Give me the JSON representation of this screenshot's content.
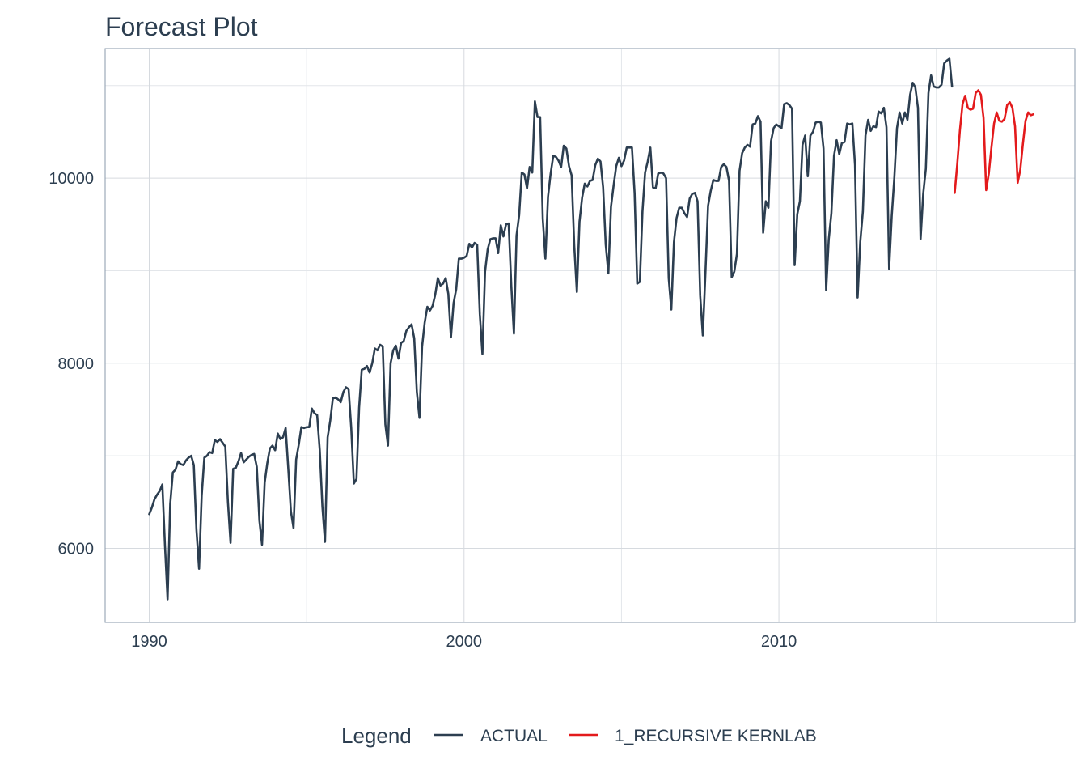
{
  "title": "Forecast Plot",
  "legend": {
    "title": "Legend",
    "position": "bottom",
    "items": [
      {
        "label": "ACTUAL",
        "color": "#2c3e50"
      },
      {
        "label": "1_RECURSIVE KERNLAB",
        "color": "#e31a1c"
      }
    ]
  },
  "chart_data": {
    "type": "line",
    "title": "Forecast Plot",
    "xlabel": "",
    "ylabel": "",
    "xlim": [
      1988.6,
      2019.4
    ],
    "ylim": [
      5200,
      11400
    ],
    "x_ticks": [
      1990,
      2000,
      2010
    ],
    "x_tick_labels": [
      "1990",
      "2000",
      "2010"
    ],
    "y_ticks": [
      6000,
      8000,
      10000
    ],
    "y_tick_labels": [
      "6000",
      "8000",
      "10000"
    ],
    "grid": true,
    "series": [
      {
        "name": "ACTUAL",
        "color": "#2c3e50",
        "x_start": 1990.0,
        "x_step": 0.083333,
        "values": [
          6370,
          6440,
          6530,
          6580,
          6620,
          6690,
          6030,
          5450,
          6480,
          6820,
          6850,
          6940,
          6910,
          6900,
          6950,
          6980,
          7000,
          6900,
          6200,
          5780,
          6570,
          6980,
          7000,
          7040,
          7030,
          7170,
          7150,
          7180,
          7140,
          7100,
          6500,
          6060,
          6860,
          6870,
          6940,
          7030,
          6930,
          6960,
          6990,
          7010,
          7020,
          6880,
          6300,
          6040,
          6710,
          6920,
          7080,
          7110,
          7060,
          7240,
          7180,
          7200,
          7300,
          6860,
          6400,
          6220,
          6960,
          7120,
          7310,
          7300,
          7310,
          7310,
          7510,
          7460,
          7440,
          7060,
          6450,
          6070,
          7200,
          7380,
          7620,
          7630,
          7610,
          7580,
          7690,
          7740,
          7720,
          7300,
          6700,
          6750,
          7520,
          7930,
          7940,
          7970,
          7900,
          8000,
          8160,
          8140,
          8200,
          8180,
          7340,
          7110,
          8000,
          8140,
          8190,
          8050,
          8220,
          8240,
          8350,
          8390,
          8420,
          8270,
          7690,
          7410,
          8180,
          8440,
          8610,
          8570,
          8620,
          8740,
          8920,
          8840,
          8860,
          8920,
          8750,
          8280,
          8650,
          8800,
          9130,
          9130,
          9140,
          9160,
          9290,
          9250,
          9300,
          9280,
          8530,
          8100,
          8990,
          9230,
          9340,
          9350,
          9350,
          9190,
          9490,
          9370,
          9500,
          9510,
          8840,
          8320,
          9380,
          9600,
          10060,
          10040,
          9890,
          10120,
          10060,
          10830,
          10660,
          10660,
          9560,
          9130,
          9800,
          10050,
          10240,
          10230,
          10190,
          10120,
          10350,
          10320,
          10130,
          10030,
          9270,
          8770,
          9530,
          9790,
          9940,
          9910,
          9970,
          9980,
          10140,
          10210,
          10180,
          9900,
          9280,
          8970,
          9690,
          9920,
          10130,
          10220,
          10130,
          10190,
          10330,
          10330,
          10330,
          9840,
          8860,
          8880,
          9640,
          10060,
          10180,
          10330,
          9900,
          9890,
          10050,
          10060,
          10050,
          10000,
          8920,
          8580,
          9310,
          9570,
          9680,
          9680,
          9620,
          9580,
          9780,
          9830,
          9840,
          9750,
          8730,
          8300,
          8980,
          9700,
          9860,
          9980,
          9970,
          9970,
          10120,
          10150,
          10120,
          9970,
          8930,
          8990,
          9180,
          10080,
          10270,
          10330,
          10360,
          10340,
          10580,
          10590,
          10670,
          10610,
          9410,
          9750,
          9680,
          10400,
          10540,
          10580,
          10560,
          10540,
          10800,
          10810,
          10790,
          10750,
          9060,
          9610,
          9750,
          10360,
          10460,
          10020,
          10460,
          10500,
          10600,
          10610,
          10600,
          10320,
          8790,
          9340,
          9620,
          10240,
          10410,
          10260,
          10380,
          10390,
          10590,
          10580,
          10590,
          10140,
          8710,
          9310,
          9640,
          10460,
          10630,
          10510,
          10560,
          10550,
          10720,
          10700,
          10760,
          10550,
          9020,
          9590,
          10010,
          10540,
          10710,
          10590,
          10710,
          10630,
          10900,
          11030,
          10980,
          10760,
          9340,
          9830,
          10100,
          10920,
          11110,
          10990,
          10980,
          10980,
          11010,
          11240,
          11270,
          11290,
          10990
        ]
      },
      {
        "name": "1_RECURSIVE KERNLAB",
        "color": "#e31a1c",
        "x_start": 2015.5833,
        "x_step": 0.083333,
        "values": [
          9840,
          10160,
          10520,
          10800,
          10890,
          10760,
          10740,
          10750,
          10920,
          10950,
          10900,
          10650,
          9870,
          10050,
          10330,
          10590,
          10710,
          10620,
          10610,
          10640,
          10790,
          10820,
          10760,
          10560,
          9950,
          10090,
          10370,
          10620,
          10710,
          10680,
          10690
        ]
      }
    ]
  }
}
